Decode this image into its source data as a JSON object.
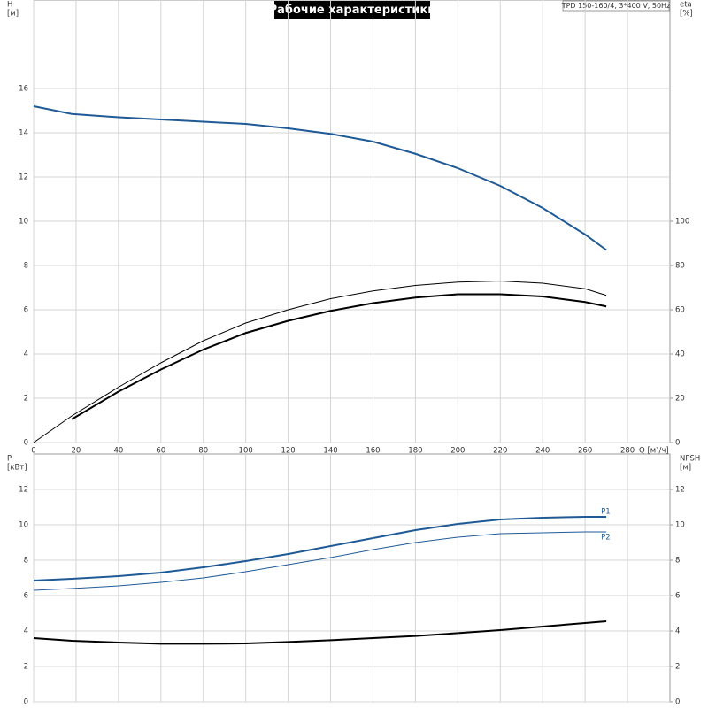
{
  "chart_data": [
    {
      "type": "line",
      "title": "Рабочие характеристики",
      "annotation": "TPD 150-160/4, 3*400 V, 50Hz",
      "y_label": "H",
      "y_unit": "[м]",
      "y2_label": "eta",
      "y2_unit": "[%]",
      "x_label": "Q [м³/ч]",
      "xlim": [
        0,
        300
      ],
      "xticks": [
        0,
        20,
        40,
        60,
        80,
        100,
        120,
        140,
        160,
        180,
        200,
        220,
        240,
        260,
        280
      ],
      "ylim": [
        0,
        20
      ],
      "yticks": [
        0,
        2,
        4,
        6,
        8,
        10,
        12,
        14,
        16
      ],
      "y2lim": [
        0,
        200
      ],
      "y2ticks": [
        0,
        20,
        40,
        60,
        80,
        100
      ],
      "grid": true,
      "x": [
        0,
        18,
        40,
        60,
        80,
        100,
        120,
        140,
        160,
        180,
        200,
        220,
        240,
        260,
        270
      ],
      "series": [
        {
          "color": "#1f5a96",
          "linewidth": 2,
          "values": [
            15.2,
            14.85,
            14.7,
            14.6,
            14.5,
            14.4,
            14.2,
            13.95,
            13.6,
            13.05,
            12.4,
            11.6,
            10.6,
            9.4,
            8.7
          ]
        },
        {
          "color": "#000000",
          "linewidth": 1,
          "axis": "y2",
          "values": [
            0,
            12,
            25,
            36,
            46,
            54,
            60,
            65,
            68.5,
            71,
            72.5,
            73,
            72,
            69.5,
            66.5
          ]
        },
        {
          "color": "#000000",
          "linewidth": 2,
          "axis": "y2",
          "values": [
            null,
            10.5,
            23,
            33,
            42,
            49.5,
            55,
            59.5,
            63,
            65.5,
            67,
            67,
            66,
            63.5,
            61.5
          ]
        }
      ]
    },
    {
      "type": "line",
      "y_label": "P",
      "y_unit": "[кВт]",
      "y2_label": "NPSH",
      "y2_unit": "[м]",
      "xlim": [
        0,
        300
      ],
      "ylim": [
        0,
        14
      ],
      "yticks": [
        0,
        2,
        4,
        6,
        8,
        10,
        12
      ],
      "y2lim": [
        0,
        14
      ],
      "y2ticks": [
        0,
        2,
        4,
        6,
        8,
        10,
        12
      ],
      "grid": true,
      "x": [
        0,
        18,
        40,
        60,
        80,
        100,
        120,
        140,
        160,
        180,
        200,
        220,
        240,
        260,
        270
      ],
      "series": [
        {
          "name": "P1",
          "color": "#1f5a96",
          "linewidth": 2,
          "values": [
            6.85,
            6.95,
            7.1,
            7.3,
            7.6,
            7.95,
            8.35,
            8.8,
            9.25,
            9.7,
            10.05,
            10.3,
            10.4,
            10.45,
            10.45
          ]
        },
        {
          "name": "P2",
          "color": "#1f5a96",
          "linewidth": 1,
          "values": [
            6.3,
            6.4,
            6.55,
            6.75,
            7.0,
            7.35,
            7.75,
            8.15,
            8.6,
            9.0,
            9.3,
            9.5,
            9.55,
            9.6,
            9.6
          ]
        },
        {
          "color": "#000000",
          "linewidth": 2,
          "axis": "y2",
          "values": [
            3.6,
            3.45,
            3.35,
            3.28,
            3.28,
            3.3,
            3.38,
            3.48,
            3.6,
            3.72,
            3.88,
            4.05,
            4.25,
            4.45,
            4.55
          ]
        }
      ]
    }
  ]
}
